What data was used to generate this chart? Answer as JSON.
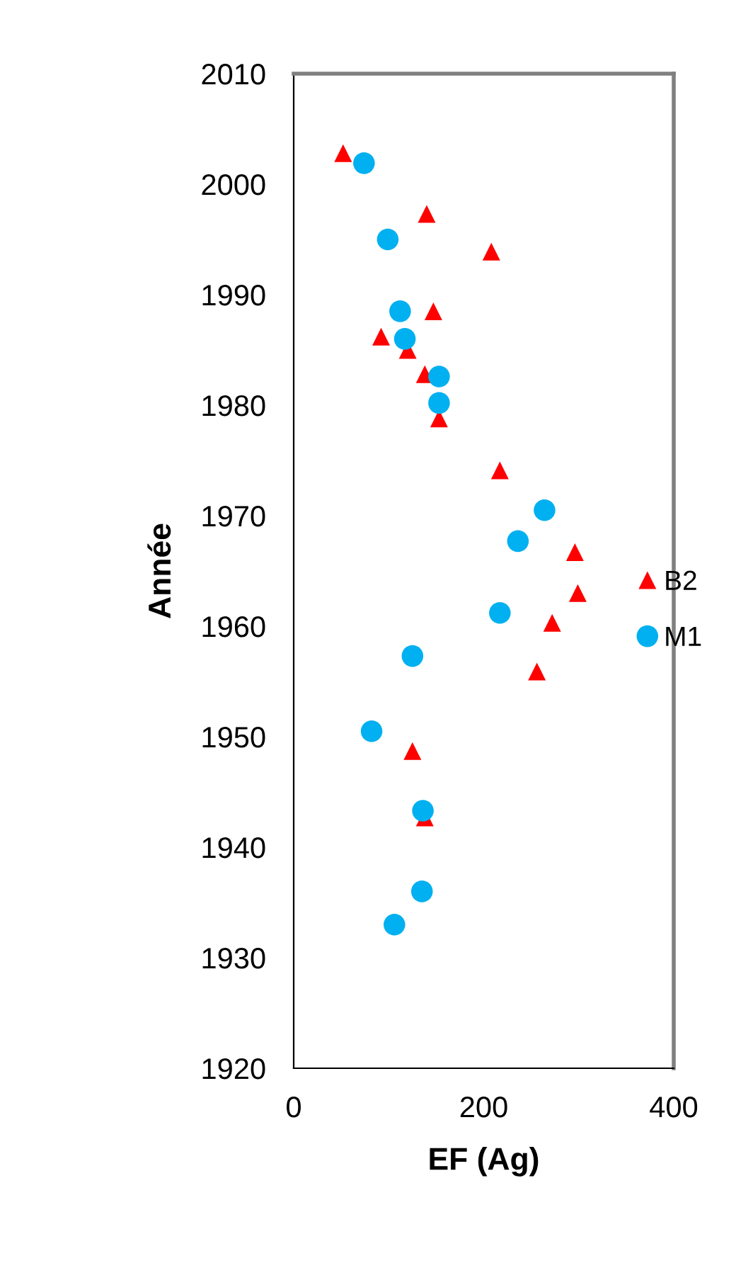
{
  "chart_data": {
    "type": "scatter",
    "xlabel": "EF (Ag)",
    "ylabel": "Année",
    "xlim": [
      0,
      400
    ],
    "xticks": [
      0,
      200,
      400
    ],
    "ylim": [
      1920,
      2010
    ],
    "yticks": [
      1920,
      1930,
      1940,
      1950,
      1960,
      1970,
      1980,
      1990,
      2000,
      2010
    ],
    "grid": false,
    "legend": "right",
    "series": [
      {
        "name": "B2",
        "color": "#ff0000",
        "marker": "triangle",
        "x": [
          52,
          140,
          208,
          147,
          92,
          120,
          138,
          153,
          217,
          296,
          299,
          272,
          256,
          125,
          138
        ],
        "values": [
          2002.8,
          1997.3,
          1993.9,
          1988.5,
          1986.2,
          1985.0,
          1982.8,
          1978.8,
          1974.1,
          1966.7,
          1963.0,
          1960.3,
          1955.9,
          1948.7,
          1942.7
        ]
      },
      {
        "name": "M1",
        "color": "#00b0f0",
        "marker": "circle",
        "x": [
          74,
          99,
          112,
          117,
          153,
          153,
          264,
          236,
          217,
          125,
          82,
          136,
          135,
          106
        ],
        "values": [
          2001.9,
          1995.0,
          1988.5,
          1986.0,
          1982.6,
          1980.2,
          1970.5,
          1967.7,
          1961.2,
          1957.3,
          1950.5,
          1943.3,
          1936.0,
          1933.0
        ]
      }
    ]
  }
}
